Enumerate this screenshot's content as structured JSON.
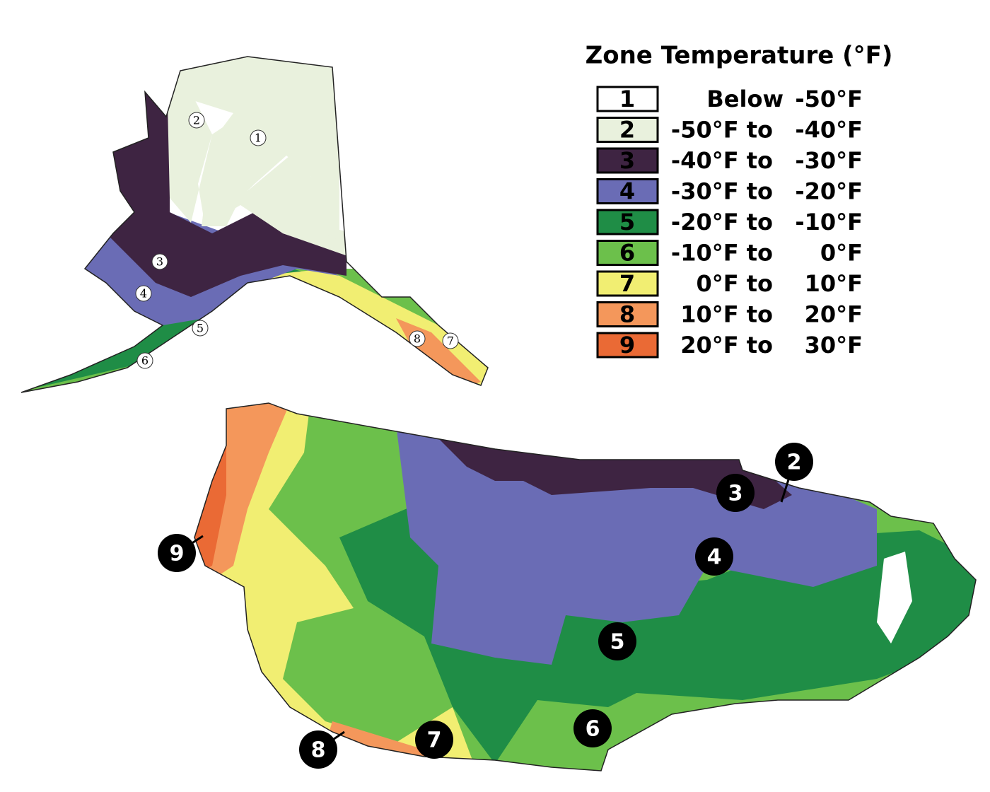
{
  "legend": {
    "title": "Zone Temperature (°F)",
    "zones": [
      {
        "zone": "1",
        "low": "Below",
        "high": "-50°F",
        "color": "#ffffff"
      },
      {
        "zone": "2",
        "low": "-50°F to",
        "high": "-40°F",
        "color": "#e9f1dd"
      },
      {
        "zone": "3",
        "low": "-40°F to",
        "high": "-30°F",
        "color": "#3e2442"
      },
      {
        "zone": "4",
        "low": "-30°F to",
        "high": "-20°F",
        "color": "#6a6cb5"
      },
      {
        "zone": "5",
        "low": "-20°F to",
        "high": "-10°F",
        "color": "#1f8d46"
      },
      {
        "zone": "6",
        "low": "-10°F to",
        "high": "0°F",
        "color": "#6cc04b"
      },
      {
        "zone": "7",
        "low": "0°F to",
        "high": "10°F",
        "color": "#f1ee72"
      },
      {
        "zone": "8",
        "low": "10°F to",
        "high": "20°F",
        "color": "#f4975b"
      },
      {
        "zone": "9",
        "low": "20°F to",
        "high": "30°F",
        "color": "#ea6a35"
      }
    ]
  },
  "alaska_labels": [
    "1",
    "2",
    "3",
    "4",
    "5",
    "6",
    "7",
    "8"
  ],
  "us_labels": [
    "2",
    "3",
    "4",
    "5",
    "6",
    "7",
    "8",
    "9"
  ]
}
